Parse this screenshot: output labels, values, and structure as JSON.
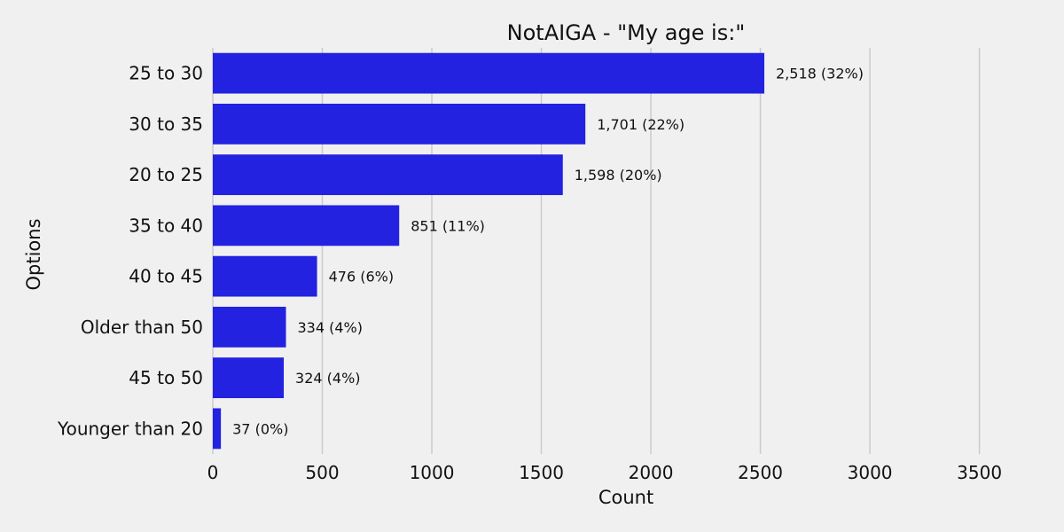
{
  "chart_data": {
    "type": "bar",
    "orientation": "horizontal",
    "title": "NotAIGA - \"My age is:\"",
    "xlabel": "Count",
    "ylabel": "Options",
    "categories": [
      "25 to 30",
      "30 to 35",
      "20 to 25",
      "35 to 40",
      "40 to 45",
      "Older than 50",
      "45 to 50",
      "Younger than 20"
    ],
    "values": [
      2518,
      1701,
      1598,
      851,
      476,
      334,
      324,
      37
    ],
    "data_labels": [
      "2,518 (32%)",
      "1,701 (22%)",
      "1,598 (20%)",
      "851 (11%)",
      "476 (6%)",
      "334 (4%)",
      "324 (4%)",
      "37 (0%)"
    ],
    "xlim": [
      0,
      3700
    ],
    "xticks": [
      0,
      500,
      1000,
      1500,
      2000,
      2500,
      3000,
      3500
    ],
    "grid": "vertical",
    "legend": "none"
  },
  "colors": {
    "background": "#f0f0f0",
    "bar": "#2222e0",
    "grid": "#cbcbcb",
    "text": "#111111"
  }
}
